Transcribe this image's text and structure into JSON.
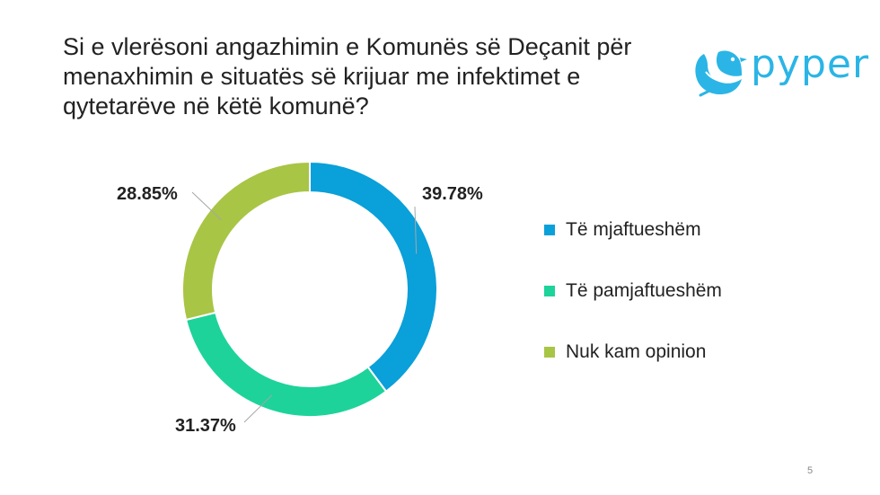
{
  "title_lines": [
    "Si e vlerësoni angazhimin e Komunës së Deçanit për",
    "menaxhimin e situatës së krijuar me infektimet e",
    "qytetarëve në këtë komunë?"
  ],
  "logo": {
    "text": "pyper",
    "icon": "bird-icon",
    "color": "#2bb5e6"
  },
  "chart_data": {
    "type": "pie",
    "donut": true,
    "categories": [
      "Të mjaftueshëm",
      "Të pamjaftueshëm",
      "Nuk kam opinion"
    ],
    "values": [
      39.78,
      31.37,
      28.85
    ],
    "labels": [
      "39.78%",
      "31.37%",
      "28.85%"
    ],
    "colors": [
      "#0aa0d9",
      "#1dd39a",
      "#a8c545"
    ],
    "legend_position": "right"
  },
  "page_number": "5"
}
